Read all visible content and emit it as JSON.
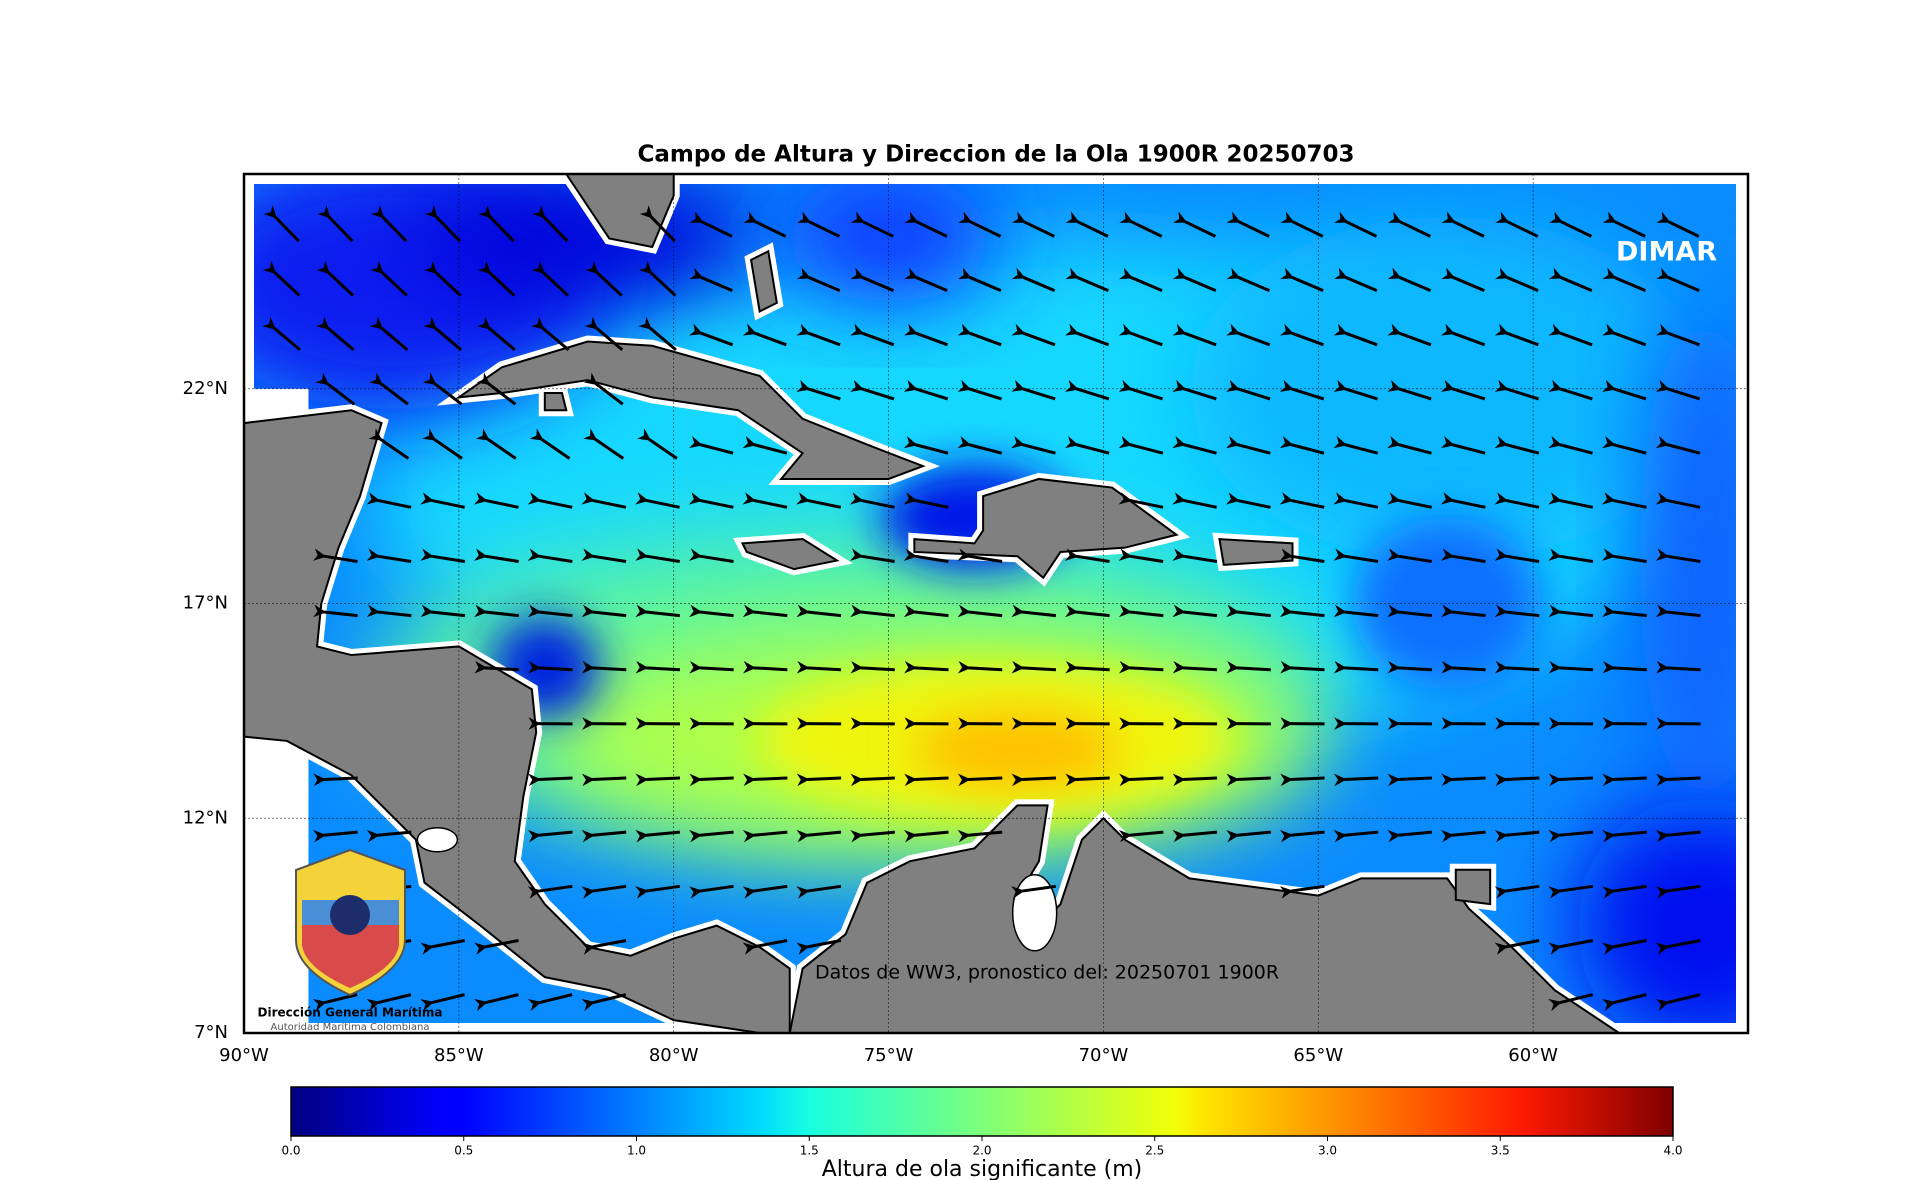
{
  "chart_data": {
    "type": "map",
    "title": "Campo de Altura y Direccion de la Ola 1900R 20250703",
    "xlim": [
      -90,
      -55
    ],
    "ylim": [
      7,
      27
    ],
    "xticks": [
      {
        "value": -90,
        "label": "90°W"
      },
      {
        "value": -85,
        "label": "85°W"
      },
      {
        "value": -80,
        "label": "80°W"
      },
      {
        "value": -75,
        "label": "75°W"
      },
      {
        "value": -70,
        "label": "70°W"
      },
      {
        "value": -65,
        "label": "65°W"
      },
      {
        "value": -60,
        "label": "60°W"
      }
    ],
    "yticks": [
      {
        "value": 7,
        "label": "7°N"
      },
      {
        "value": 12,
        "label": "12°N"
      },
      {
        "value": 17,
        "label": "17°N"
      },
      {
        "value": 22,
        "label": "22°N"
      }
    ],
    "grid": true,
    "watermark": "DIMAR",
    "annotation": "Datos de WW3, pronostico del: 20250701 1900R",
    "logo_title": "Dirección General Marítima",
    "logo_subtitle": "Autoridad Marítima Colombiana",
    "colorbar": {
      "label": "Altura de ola significante (m)",
      "lim": [
        0,
        4
      ],
      "ticks": [
        {
          "value": 0,
          "label": "0.0"
        },
        {
          "value": 0.5,
          "label": "0.5"
        },
        {
          "value": 1,
          "label": "1.0"
        },
        {
          "value": 1.5,
          "label": "1.5"
        },
        {
          "value": 2,
          "label": "2.0"
        },
        {
          "value": 2.5,
          "label": "2.5"
        },
        {
          "value": 3,
          "label": "3.0"
        },
        {
          "value": 3.5,
          "label": "3.5"
        },
        {
          "value": 4,
          "label": "4.0"
        }
      ]
    }
  }
}
